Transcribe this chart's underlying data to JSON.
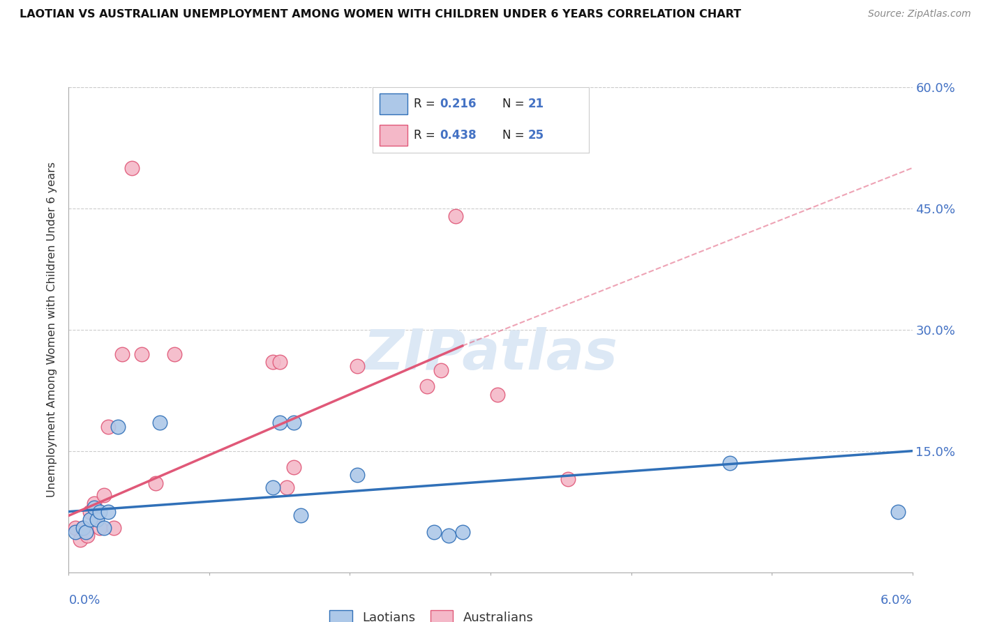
{
  "title": "LAOTIAN VS AUSTRALIAN UNEMPLOYMENT AMONG WOMEN WITH CHILDREN UNDER 6 YEARS CORRELATION CHART",
  "source": "Source: ZipAtlas.com",
  "ylabel": "Unemployment Among Women with Children Under 6 years",
  "xlim": [
    0.0,
    6.0
  ],
  "ylim": [
    0.0,
    60.0
  ],
  "ytick_vals": [
    15.0,
    30.0,
    45.0,
    60.0
  ],
  "xtick_vals": [
    0.0,
    1.0,
    2.0,
    3.0,
    4.0,
    5.0,
    6.0
  ],
  "laotians_R": 0.216,
  "laotians_N": 21,
  "australians_R": 0.438,
  "australians_N": 25,
  "laotian_fill": "#adc8e8",
  "laotian_edge": "#3070b8",
  "australian_fill": "#f4b8c8",
  "australian_edge": "#e05878",
  "bg_color": "#ffffff",
  "grid_color": "#cccccc",
  "right_label_color": "#4472c4",
  "watermark_text": "ZIPatlas",
  "watermark_color": "#dce8f5",
  "laotian_x": [
    0.05,
    0.1,
    0.12,
    0.15,
    0.18,
    0.2,
    0.22,
    0.25,
    0.28,
    0.35,
    0.65,
    1.45,
    1.5,
    1.6,
    1.65,
    2.05,
    2.6,
    2.7,
    2.8,
    4.7,
    5.9
  ],
  "laotian_y": [
    5.0,
    5.5,
    5.0,
    6.5,
    8.0,
    6.5,
    7.5,
    5.5,
    7.5,
    18.0,
    18.5,
    10.5,
    18.5,
    18.5,
    7.0,
    12.0,
    5.0,
    4.5,
    5.0,
    13.5,
    7.5
  ],
  "australian_x": [
    0.05,
    0.08,
    0.1,
    0.13,
    0.15,
    0.18,
    0.22,
    0.25,
    0.28,
    0.32,
    0.38,
    0.45,
    0.52,
    0.62,
    0.75,
    1.45,
    1.5,
    1.55,
    1.6,
    2.05,
    2.55,
    2.65,
    2.75,
    3.05,
    3.55
  ],
  "australian_y": [
    5.5,
    4.0,
    5.5,
    4.5,
    7.5,
    8.5,
    5.5,
    9.5,
    18.0,
    5.5,
    27.0,
    50.0,
    27.0,
    11.0,
    27.0,
    26.0,
    26.0,
    10.5,
    13.0,
    25.5,
    23.0,
    25.0,
    44.0,
    22.0,
    11.5
  ],
  "laotian_trend": [
    0.0,
    7.5,
    6.0,
    15.0
  ],
  "australian_trend_solid": [
    0.0,
    7.0,
    2.8,
    28.0
  ],
  "australian_trend_dash": [
    2.8,
    28.0,
    6.0,
    50.0
  ],
  "legend_R_color": "#4472c4",
  "legend_text_color": "#222222"
}
